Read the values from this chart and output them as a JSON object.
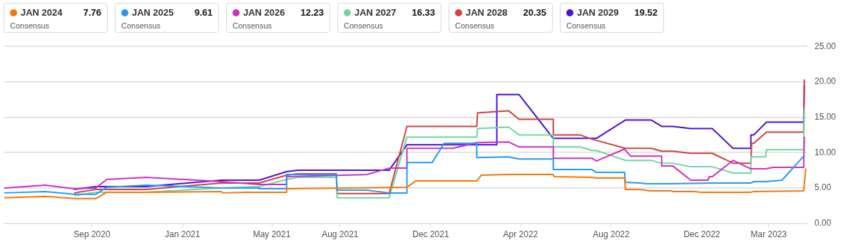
{
  "chart_data": {
    "type": "line",
    "xlim": [
      "2020-05-05",
      "2023-04-22"
    ],
    "xticks": [
      {
        "value": "2020-09-01",
        "label": "Sep 2020"
      },
      {
        "value": "2021-01-01",
        "label": "Jan 2021"
      },
      {
        "value": "2021-05-01",
        "label": "May 2021"
      },
      {
        "value": "2021-08-01",
        "label": "Aug 2021"
      },
      {
        "value": "2021-12-01",
        "label": "Dec 2021"
      },
      {
        "value": "2022-04-01",
        "label": "Apr 2022"
      },
      {
        "value": "2022-08-01",
        "label": "Aug 2022"
      },
      {
        "value": "2022-12-01",
        "label": "Dec 2022"
      },
      {
        "value": "2023-03-01",
        "label": "Mar 2023"
      }
    ],
    "ylim": [
      0,
      25
    ],
    "yticks": [
      {
        "value": 0,
        "label": "0.00"
      },
      {
        "value": 5,
        "label": "5.00"
      },
      {
        "value": 10,
        "label": "10.00"
      },
      {
        "value": 15,
        "label": "15.00"
      },
      {
        "value": 20,
        "label": "20.00"
      },
      {
        "value": 25,
        "label": "25.00"
      }
    ],
    "grid": "y",
    "legend": "top left",
    "annotations": [
      "7.76",
      "Consensus",
      "9.61",
      "Consensus",
      "12.23",
      "Consensus",
      "16.33",
      "Consensus",
      "20.35",
      "Consensus",
      "19.52",
      "Consensus"
    ],
    "series": [
      {
        "name": "JAN 2024",
        "color": "#ff7300",
        "x": [
          "2020-05-06",
          "2020-06-30",
          "2020-08-08",
          "2020-09-06",
          "2020-09-21",
          "2020-11-13",
          "2021-02-22",
          "2021-02-24",
          "2021-03-27",
          "2021-05-21",
          "2021-05-21",
          "2021-10-30",
          "2021-11-11",
          "2022-02-01",
          "2022-02-07",
          "2022-03-16",
          "2022-05-15",
          "2022-05-16",
          "2022-07-06",
          "2022-07-12",
          "2022-08-19",
          "2022-08-20",
          "2022-09-09",
          "2022-09-22",
          "2022-10-21",
          "2022-10-23",
          "2022-11-21",
          "2022-11-29",
          "2023-02-05",
          "2023-02-09",
          "2023-04-17",
          "2023-04-20"
        ],
        "values": [
          3.6,
          3.8,
          3.5,
          3.5,
          4.4,
          4.4,
          4.5,
          4.3,
          4.4,
          4.4,
          4.9,
          5.1,
          6.0,
          6.0,
          6.8,
          6.9,
          6.9,
          6.6,
          6.5,
          6.4,
          6.4,
          4.8,
          4.8,
          4.6,
          4.6,
          4.5,
          4.5,
          4.4,
          4.4,
          4.5,
          4.6,
          7.76
        ]
      },
      {
        "name": "JAN 2025",
        "color": "#1f9bff",
        "x": [
          "2020-05-06",
          "2020-06-30",
          "2020-08-08",
          "2020-09-06",
          "2020-09-21",
          "2020-11-13",
          "2021-02-22",
          "2021-04-14",
          "2021-04-14",
          "2021-05-21",
          "2021-05-21",
          "2021-07-27",
          "2021-07-28",
          "2021-09-06",
          "2021-10-06",
          "2021-10-30",
          "2021-10-30",
          "2021-12-03",
          "2021-12-19",
          "2022-02-01",
          "2022-02-01",
          "2022-03-16",
          "2022-03-30",
          "2022-05-15",
          "2022-05-15",
          "2022-07-06",
          "2022-07-12",
          "2022-08-19",
          "2022-08-20",
          "2022-09-09",
          "2022-09-17",
          "2022-10-21",
          "2022-12-13",
          "2023-02-05",
          "2023-02-09",
          "2023-02-25",
          "2023-03-19",
          "2023-04-18"
        ],
        "values": [
          4.3,
          4.5,
          4.1,
          4.1,
          5.1,
          5.4,
          5.0,
          5.0,
          4.9,
          4.9,
          6.9,
          6.9,
          4.7,
          4.7,
          4.3,
          4.3,
          8.6,
          8.6,
          11.3,
          11.3,
          9.3,
          9.4,
          9.1,
          9.1,
          7.6,
          7.6,
          7.2,
          7.2,
          5.8,
          5.7,
          5.6,
          5.6,
          5.7,
          5.7,
          5.9,
          5.9,
          6.1,
          9.61
        ]
      },
      {
        "name": "JAN 2026",
        "color": "#d42cc6",
        "x": [
          "2020-05-06",
          "2020-06-30",
          "2020-08-08",
          "2020-09-06",
          "2020-09-21",
          "2020-11-13",
          "2021-02-22",
          "2021-04-14",
          "2021-05-21",
          "2021-05-21",
          "2021-09-06",
          "2021-10-06",
          "2021-10-30",
          "2021-10-30",
          "2021-12-31",
          "2022-02-01",
          "2022-03-16",
          "2022-03-30",
          "2022-05-15",
          "2022-05-15",
          "2022-07-06",
          "2022-07-12",
          "2022-08-19",
          "2022-08-27",
          "2022-10-08",
          "2022-10-08",
          "2022-10-23",
          "2022-11-16",
          "2022-12-09",
          "2022-12-11",
          "2022-12-15",
          "2023-01-12",
          "2023-02-05",
          "2023-02-25",
          "2023-03-07",
          "2023-04-17",
          "2023-04-18"
        ],
        "values": [
          5.0,
          5.4,
          4.9,
          5.0,
          6.2,
          6.5,
          5.9,
          5.5,
          5.5,
          6.6,
          6.9,
          7.8,
          7.8,
          10.6,
          10.6,
          11.4,
          11.5,
          10.8,
          10.8,
          9.2,
          9.2,
          8.8,
          10.5,
          9.5,
          9.5,
          8.1,
          8.1,
          6.1,
          6.1,
          6.6,
          6.6,
          8.9,
          7.7,
          7.7,
          7.9,
          7.9,
          12.23
        ]
      },
      {
        "name": "JAN 2027",
        "color": "#6cd9a0",
        "x": [
          "2020-08-08",
          "2020-09-06",
          "2020-11-13",
          "2021-02-22",
          "2021-04-14",
          "2021-05-21",
          "2021-06-05",
          "2021-07-27",
          "2021-07-28",
          "2021-10-06",
          "2021-10-30",
          "2022-02-01",
          "2022-02-02",
          "2022-03-16",
          "2022-03-30",
          "2022-05-15",
          "2022-05-15",
          "2022-06-20",
          "2022-07-06",
          "2022-07-12",
          "2022-08-20",
          "2022-09-24",
          "2022-10-08",
          "2022-10-23",
          "2022-11-16",
          "2022-12-15",
          "2023-01-12",
          "2023-02-05",
          "2023-02-05",
          "2023-02-25",
          "2023-02-26",
          "2023-04-17",
          "2023-04-18"
        ],
        "values": [
          3.9,
          4.4,
          4.4,
          5.0,
          5.2,
          6.2,
          6.5,
          6.5,
          3.6,
          3.6,
          12.2,
          12.2,
          13.4,
          13.6,
          12.5,
          12.5,
          10.8,
          10.8,
          10.3,
          10.3,
          8.9,
          8.9,
          8.5,
          8.5,
          8.0,
          8.0,
          7.1,
          7.1,
          9.4,
          9.4,
          10.4,
          10.4,
          16.33
        ]
      },
      {
        "name": "JAN 2028",
        "color": "#d6403a",
        "x": [
          "2020-08-08",
          "2020-09-06",
          "2020-11-13",
          "2021-02-22",
          "2021-04-14",
          "2021-05-21",
          "2021-06-05",
          "2021-07-27",
          "2021-07-28",
          "2021-10-06",
          "2021-10-30",
          "2022-02-01",
          "2022-02-02",
          "2022-03-16",
          "2022-03-30",
          "2022-05-15",
          "2022-05-15",
          "2022-06-20",
          "2022-07-06",
          "2022-08-20",
          "2022-09-24",
          "2022-10-08",
          "2022-10-23",
          "2022-11-16",
          "2022-12-15",
          "2023-01-12",
          "2023-02-05",
          "2023-02-06",
          "2023-02-09",
          "2023-02-26",
          "2023-04-17",
          "2023-04-18"
        ],
        "values": [
          4.3,
          4.8,
          4.8,
          5.7,
          5.7,
          6.8,
          7.0,
          7.0,
          4.2,
          4.2,
          13.7,
          13.7,
          15.6,
          15.9,
          14.7,
          14.7,
          12.5,
          12.5,
          11.9,
          10.6,
          10.6,
          10.2,
          10.2,
          9.9,
          9.9,
          8.5,
          8.5,
          11.3,
          11.3,
          12.9,
          12.9,
          20.35
        ]
      },
      {
        "name": "JAN 2029",
        "color": "#4a10e0",
        "x": [
          "2020-08-08",
          "2020-09-06",
          "2020-11-13",
          "2021-02-22",
          "2021-04-14",
          "2021-05-21",
          "2021-06-05",
          "2021-10-06",
          "2021-10-30",
          "2022-02-28",
          "2022-02-28",
          "2022-03-30",
          "2022-05-15",
          "2022-07-12",
          "2022-08-20",
          "2022-09-24",
          "2022-10-08",
          "2022-10-23",
          "2022-11-16",
          "2022-12-15",
          "2023-01-12",
          "2023-02-05",
          "2023-02-05",
          "2023-02-09",
          "2023-02-26",
          "2023-04-17",
          "2023-04-18"
        ],
        "values": [
          4.8,
          5.2,
          5.2,
          6.1,
          6.1,
          7.3,
          7.5,
          7.5,
          11.1,
          11.1,
          18.2,
          18.2,
          12.0,
          12.0,
          14.6,
          14.6,
          13.7,
          13.7,
          13.4,
          13.4,
          10.6,
          10.6,
          12.5,
          12.5,
          14.3,
          14.3,
          19.52
        ]
      }
    ]
  }
}
